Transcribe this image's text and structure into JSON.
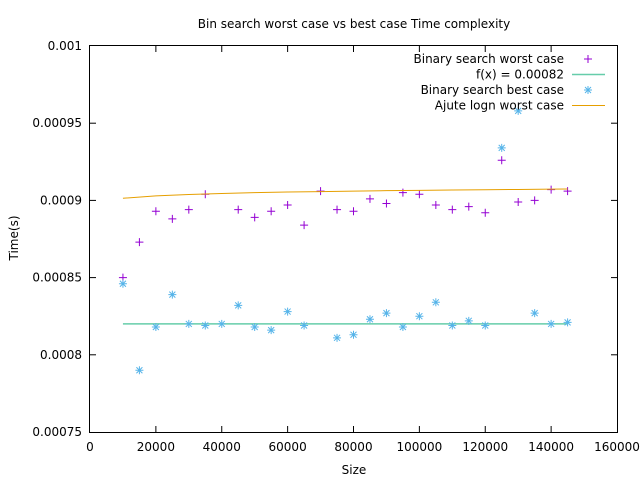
{
  "chart_data": {
    "type": "scatter",
    "title": "Bin search worst case vs best case Time complexity",
    "xlabel": "Size",
    "ylabel": "Time(s)",
    "xlim": [
      0,
      160000
    ],
    "ylim": [
      0.00075,
      0.001
    ],
    "x_ticks": [
      0,
      20000,
      40000,
      60000,
      80000,
      100000,
      120000,
      140000,
      160000
    ],
    "x_tick_labels": [
      "0",
      "20000",
      "40000",
      "60000",
      "80000",
      "100000",
      "120000",
      "140000",
      "160000"
    ],
    "y_ticks": [
      0.00075,
      0.0008,
      0.00085,
      0.0009,
      0.00095,
      0.001
    ],
    "y_tick_labels": [
      "0.00075",
      "0.0008",
      "0.00085",
      "0.0009",
      "0.00095",
      "0.001"
    ],
    "legend_position": "top-right",
    "grid": false,
    "series": [
      {
        "name": "Binary search worst case",
        "kind": "points",
        "marker": "plus",
        "color": "#9400d3",
        "x": [
          10000,
          15000,
          20000,
          25000,
          30000,
          35000,
          45000,
          50000,
          55000,
          60000,
          65000,
          70000,
          75000,
          80000,
          85000,
          90000,
          95000,
          100000,
          105000,
          110000,
          115000,
          120000,
          125000,
          130000,
          135000,
          140000,
          145000
        ],
        "y": [
          0.00085,
          0.000873,
          0.000893,
          0.000888,
          0.000894,
          0.000904,
          0.000894,
          0.000889,
          0.000893,
          0.000897,
          0.000884,
          0.000906,
          0.000894,
          0.000893,
          0.000901,
          0.000898,
          0.000905,
          0.000904,
          0.000897,
          0.000894,
          0.000896,
          0.000892,
          0.000926,
          0.000899,
          0.0009,
          0.000907,
          0.000906
        ]
      },
      {
        "name": "f(x) = 0.00082",
        "kind": "line",
        "color": "#66cdaa",
        "x": [
          10000,
          145000
        ],
        "y": [
          0.00082,
          0.00082
        ]
      },
      {
        "name": "Binary search best case",
        "kind": "points",
        "marker": "star",
        "color": "#56b4e9",
        "x": [
          10000,
          15000,
          20000,
          25000,
          30000,
          35000,
          40000,
          45000,
          50000,
          55000,
          60000,
          65000,
          75000,
          80000,
          85000,
          90000,
          95000,
          100000,
          105000,
          110000,
          115000,
          120000,
          125000,
          130000,
          135000,
          140000,
          145000
        ],
        "y": [
          0.000846,
          0.00079,
          0.000818,
          0.000839,
          0.00082,
          0.000819,
          0.00082,
          0.000832,
          0.000818,
          0.000816,
          0.000828,
          0.000819,
          0.000811,
          0.000813,
          0.000823,
          0.000827,
          0.000818,
          0.000825,
          0.000834,
          0.000819,
          0.000822,
          0.000819,
          0.000934,
          0.000958,
          0.000827,
          0.00082,
          0.000821
        ]
      },
      {
        "name": "Ajute logn worst case",
        "kind": "curve",
        "color": "#e69f00",
        "x": [
          10000,
          20000,
          30000,
          40000,
          50000,
          60000,
          70000,
          80000,
          90000,
          100000,
          110000,
          120000,
          130000,
          140000,
          145000
        ],
        "y": [
          0.0009014,
          0.0009029,
          0.0009038,
          0.0009045,
          0.000905,
          0.0009054,
          0.0009057,
          0.000906,
          0.0009063,
          0.0009065,
          0.0009067,
          0.0009069,
          0.0009071,
          0.0009073,
          0.0009074
        ]
      }
    ]
  }
}
